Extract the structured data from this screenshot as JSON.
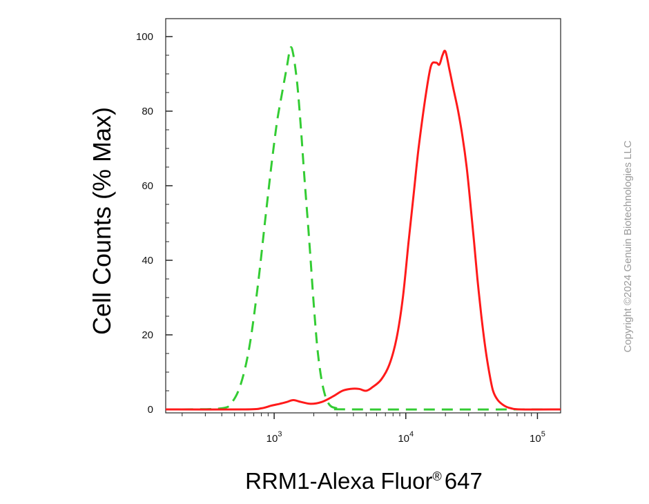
{
  "chart_data": {
    "type": "line",
    "title": "",
    "xlabel": "RRM1-Alexa Fluor",
    "xlabel_mark": "®",
    "xlabel_suffix": "647",
    "ylabel": "Cell Counts (% Max)",
    "xscale": "log",
    "xlim": [
      150,
      150000
    ],
    "ylim": [
      0,
      100
    ],
    "yticks": [
      0,
      20,
      40,
      60,
      80,
      100
    ],
    "xticks": [
      {
        "value": 1000,
        "base": "10",
        "exp": "3"
      },
      {
        "value": 10000,
        "base": "10",
        "exp": "4"
      },
      {
        "value": 100000,
        "base": "10",
        "exp": "5"
      }
    ],
    "grid": false,
    "legend": "none",
    "series": [
      {
        "color": "#33cc33",
        "style": "dashed",
        "points": [
          [
            200,
            0
          ],
          [
            400,
            0.3
          ],
          [
            480,
            2
          ],
          [
            560,
            7
          ],
          [
            650,
            17
          ],
          [
            750,
            33
          ],
          [
            850,
            50
          ],
          [
            950,
            65
          ],
          [
            1050,
            77
          ],
          [
            1150,
            85
          ],
          [
            1250,
            92
          ],
          [
            1330,
            97
          ],
          [
            1400,
            95
          ],
          [
            1500,
            87
          ],
          [
            1600,
            75
          ],
          [
            1700,
            62
          ],
          [
            1850,
            45
          ],
          [
            2000,
            28
          ],
          [
            2150,
            15
          ],
          [
            2350,
            6
          ],
          [
            2600,
            1.5
          ],
          [
            3000,
            0.3
          ],
          [
            4000,
            0
          ],
          [
            150000,
            0
          ]
        ]
      },
      {
        "color": "#ff1a1a",
        "style": "solid",
        "points": [
          [
            150,
            0
          ],
          [
            600,
            0
          ],
          [
            800,
            0.3
          ],
          [
            950,
            1
          ],
          [
            1100,
            1.5
          ],
          [
            1250,
            2
          ],
          [
            1400,
            2.5
          ],
          [
            1600,
            2
          ],
          [
            1900,
            1.5
          ],
          [
            2300,
            2
          ],
          [
            2800,
            3.5
          ],
          [
            3300,
            5
          ],
          [
            3800,
            5.5
          ],
          [
            4400,
            5.5
          ],
          [
            5000,
            5
          ],
          [
            5600,
            6
          ],
          [
            6500,
            8
          ],
          [
            7500,
            12
          ],
          [
            8500,
            19
          ],
          [
            9500,
            30
          ],
          [
            10500,
            45
          ],
          [
            11500,
            58
          ],
          [
            12500,
            70
          ],
          [
            14000,
            83
          ],
          [
            15500,
            92
          ],
          [
            17000,
            93
          ],
          [
            18000,
            92.5
          ],
          [
            19000,
            95
          ],
          [
            20000,
            96
          ],
          [
            21500,
            91
          ],
          [
            23000,
            86
          ],
          [
            25000,
            80
          ],
          [
            27000,
            73
          ],
          [
            29000,
            65
          ],
          [
            31000,
            55
          ],
          [
            33000,
            45
          ],
          [
            35000,
            35
          ],
          [
            37500,
            25
          ],
          [
            40000,
            17
          ],
          [
            43000,
            10
          ],
          [
            46000,
            5
          ],
          [
            50000,
            2.5
          ],
          [
            56000,
            1
          ],
          [
            63000,
            0.3
          ],
          [
            75000,
            0
          ],
          [
            150000,
            0
          ]
        ]
      }
    ]
  },
  "watermark": {
    "text": "Copyright ©2024 Genuin Biotechnologies LLC"
  }
}
